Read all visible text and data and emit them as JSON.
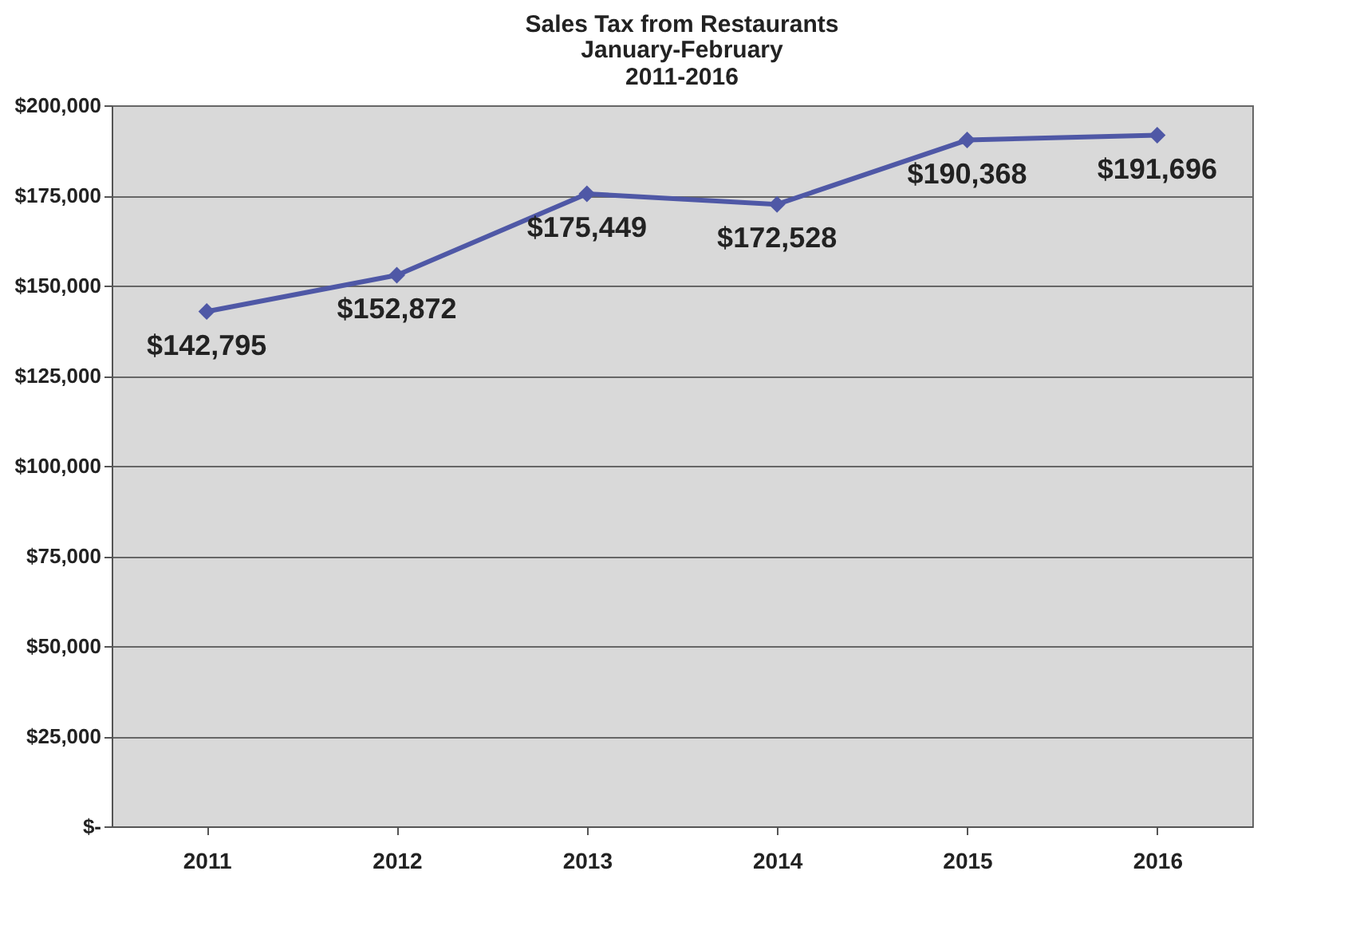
{
  "chart_data": {
    "type": "line",
    "title": "Sales Tax from Restaurants",
    "subtitle": "January-February\n2011-2016",
    "categories": [
      "2011",
      "2012",
      "2013",
      "2014",
      "2015",
      "2016"
    ],
    "series": [
      {
        "color": "#4f58a6",
        "values": [
          142795,
          152872,
          175449,
          172528,
          190368,
          191696
        ],
        "value_labels": [
          "$142,795",
          "$152,872",
          "$175,449",
          "$172,528",
          "$190,368",
          "$191,696"
        ]
      }
    ],
    "ylim": [
      0,
      200000
    ],
    "yticks": [
      {
        "value": 0,
        "label": "$-"
      },
      {
        "value": 25000,
        "label": "$25,000"
      },
      {
        "value": 50000,
        "label": "$50,000"
      },
      {
        "value": 75000,
        "label": "$75,000"
      },
      {
        "value": 100000,
        "label": "$100,000"
      },
      {
        "value": 125000,
        "label": "$125,000"
      },
      {
        "value": 150000,
        "label": "$150,000"
      },
      {
        "value": 175000,
        "label": "$175,000"
      },
      {
        "value": 200000,
        "label": "$200,000"
      }
    ],
    "grid": "y",
    "marker": "diamond",
    "line_style": "solid"
  }
}
